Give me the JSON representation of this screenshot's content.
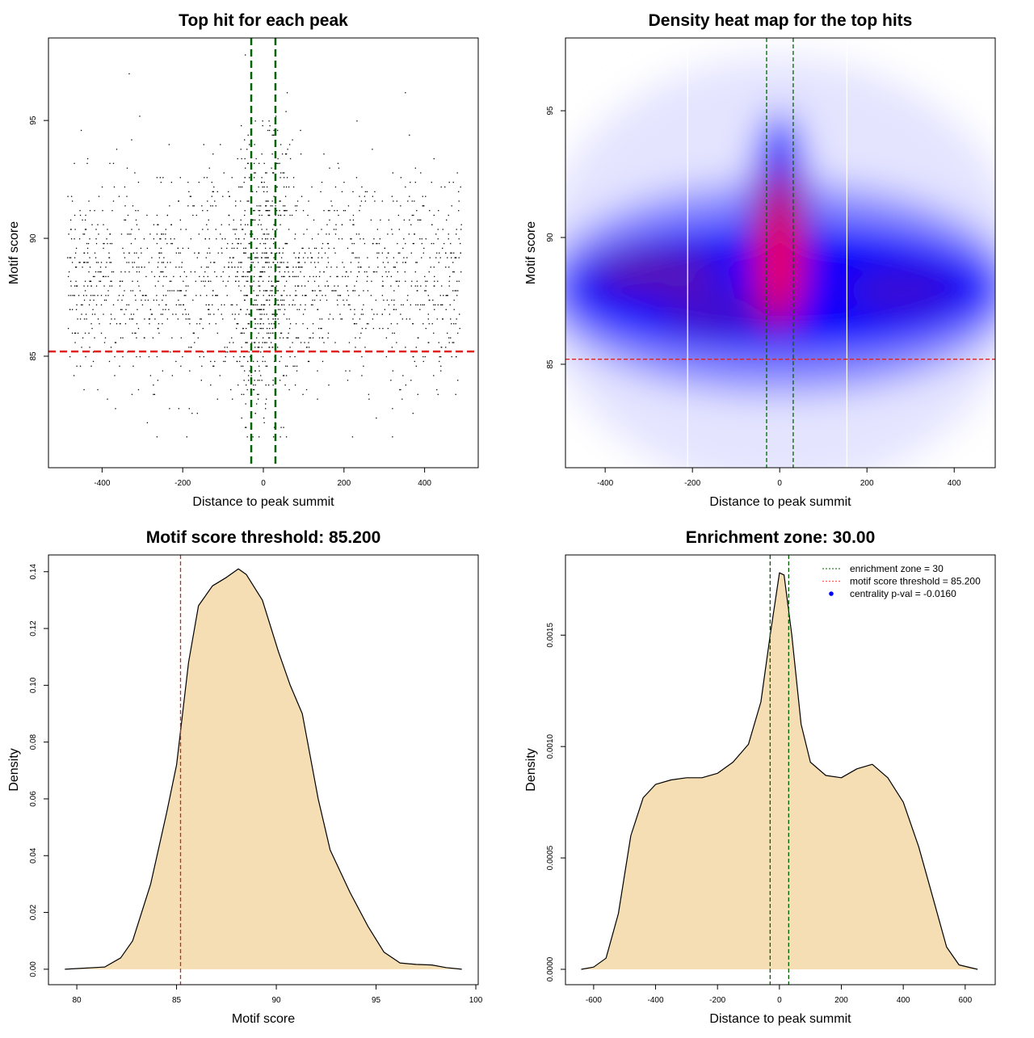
{
  "chart_data": [
    {
      "type": "scatter",
      "title": "Top hit for each peak",
      "xlabel": "Distance to peak summit",
      "ylabel": "Motif score",
      "xlim": [
        -533,
        533
      ],
      "ylim": [
        80.27,
        98.5
      ],
      "xticks": [
        -400,
        -200,
        0,
        200,
        400
      ],
      "yticks": [
        85,
        90,
        95
      ],
      "vlines": [
        -30,
        30
      ],
      "hline": 85.2,
      "point_generation": {
        "n": 2000,
        "seed": 7,
        "x_range": [
          -490,
          490
        ],
        "central_fraction": 0.22,
        "central_sd": 45,
        "y_mean": 88.4,
        "y_sd": 2.4,
        "y_range": [
          81.5,
          97.8
        ]
      },
      "colors": {
        "points": "#000000",
        "vlines": "#006400",
        "hline": "#dd2222"
      }
    },
    {
      "type": "heatmap",
      "title": "Density heat map for the top hits",
      "xlabel": "Distance to peak summit",
      "ylabel": "Motif score",
      "xlim": [
        -491,
        494
      ],
      "ylim": [
        80.92,
        97.87
      ],
      "xticks": [
        -400,
        -200,
        0,
        200,
        400
      ],
      "yticks": [
        85,
        90,
        95
      ],
      "vlines": [
        -30,
        31
      ],
      "white_lines": [
        -211,
        154
      ],
      "hline": 85.2,
      "density_blobs": [
        {
          "x": 0,
          "y": 88.6,
          "rx": 560,
          "ry": 8.5,
          "color": "#e4e4ff"
        },
        {
          "x": 0,
          "y": 88.0,
          "rx": 540,
          "ry": 4.2,
          "color": "#8888ff"
        },
        {
          "x": 0,
          "y": 88.0,
          "rx": 500,
          "ry": 2.6,
          "color": "#0000ff"
        },
        {
          "x": 0,
          "y": 90.5,
          "rx": 70,
          "ry": 4.5,
          "color": "#0000ff"
        },
        {
          "x": -280,
          "y": 88.6,
          "rx": 150,
          "ry": 0.9,
          "color": "#5a12b0"
        },
        {
          "x": 280,
          "y": 87.9,
          "rx": 130,
          "ry": 0.9,
          "color": "#3a0ad0"
        },
        {
          "x": -150,
          "y": 87.0,
          "rx": 120,
          "ry": 0.7,
          "color": "#4a10c0"
        },
        {
          "x": 0,
          "y": 89.5,
          "rx": 55,
          "ry": 3.2,
          "color": "#c00060"
        },
        {
          "x": 0,
          "y": 89.0,
          "rx": 32,
          "ry": 1.9,
          "color": "#ff0000"
        }
      ],
      "colors": {
        "vlines": "#006400",
        "hline": "#dd2222",
        "low": "#ffffff",
        "mid": "#0000ff",
        "high": "#ff0000"
      }
    },
    {
      "type": "area",
      "title": "Motif score threshold: 85.200",
      "xlabel": "Motif score",
      "ylabel": "Density",
      "xlim": [
        78.58,
        100.12
      ],
      "ylim": [
        -0.00544,
        0.1459
      ],
      "xticks": [
        80,
        85,
        90,
        95,
        100
      ],
      "yticks": [
        0.0,
        0.02,
        0.04,
        0.06,
        0.08,
        0.1,
        0.12,
        0.14
      ],
      "ytick_labels": [
        "0.00",
        "0.02",
        "0.04",
        "0.06",
        "0.08",
        "0.10",
        "0.12",
        "0.14"
      ],
      "vlines_red": [
        85.2
      ],
      "x": [
        79.4,
        81.4,
        82.2,
        82.8,
        83.7,
        84.5,
        85.0,
        85.6,
        86.1,
        86.8,
        87.5,
        88.1,
        88.5,
        89.3,
        90.1,
        90.7,
        91.3,
        92.1,
        92.7,
        93.7,
        94.6,
        95.4,
        96.2,
        97.0,
        97.8,
        98.5,
        99.3
      ],
      "y": [
        0,
        0.0008,
        0.004,
        0.01,
        0.03,
        0.055,
        0.072,
        0.108,
        0.128,
        0.135,
        0.138,
        0.141,
        0.139,
        0.13,
        0.112,
        0.1,
        0.09,
        0.06,
        0.042,
        0.027,
        0.015,
        0.006,
        0.0022,
        0.0017,
        0.0015,
        0.0006,
        0
      ],
      "colors": {
        "fill": "#f5deb3",
        "line": "#000000",
        "vline": "#cc2222"
      }
    },
    {
      "type": "area",
      "title": "Enrichment zone: 30.00",
      "xlabel": "Distance to peak summit",
      "ylabel": "Density",
      "xlim": [
        -691,
        697
      ],
      "ylim": [
        -6.9e-05,
        0.00186
      ],
      "xticks": [
        -600,
        -400,
        -200,
        0,
        200,
        400,
        600
      ],
      "yticks": [
        0,
        0.0005,
        0.001,
        0.0015
      ],
      "ytick_labels": [
        "0.0000",
        "0.0005",
        "0.0010",
        "0.0015"
      ],
      "vlines": [
        -30,
        30
      ],
      "x": [
        -640,
        -600,
        -560,
        -520,
        -480,
        -440,
        -400,
        -350,
        -300,
        -250,
        -200,
        -150,
        -100,
        -60,
        -30,
        0,
        15,
        40,
        70,
        100,
        150,
        200,
        250,
        300,
        350,
        400,
        450,
        500,
        540,
        580,
        640
      ],
      "y": [
        0,
        1e-05,
        5e-05,
        0.00025,
        0.0006,
        0.00077,
        0.00083,
        0.00085,
        0.00086,
        0.00086,
        0.00088,
        0.00093,
        0.00101,
        0.0012,
        0.0015,
        0.00178,
        0.00177,
        0.0015,
        0.0011,
        0.00093,
        0.00087,
        0.00086,
        0.0009,
        0.00092,
        0.00086,
        0.00075,
        0.00055,
        0.0003,
        0.0001,
        2e-05,
        0
      ],
      "legend": {
        "position": "top-right",
        "entries": [
          "enrichment zone = 30",
          "motif score threshold = 85.200",
          "centrality p-val = -0.0160"
        ]
      },
      "colors": {
        "fill": "#f5deb3",
        "line": "#000000",
        "vlines": "#006400",
        "leg1": "#006400",
        "leg2": "#ff4444",
        "leg3": "#0000ff"
      }
    }
  ]
}
